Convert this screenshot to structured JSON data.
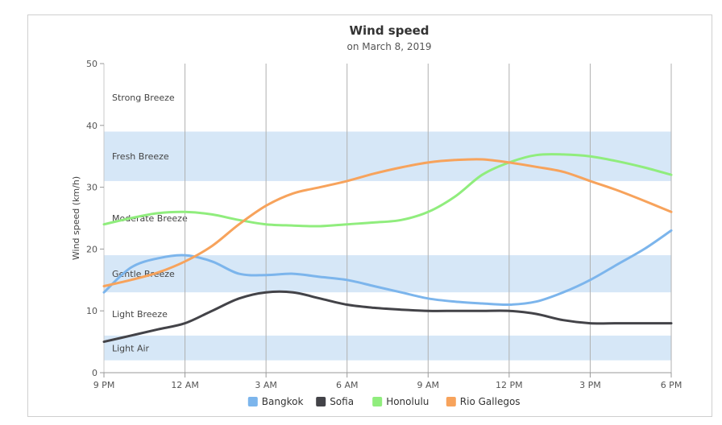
{
  "chart_data": {
    "type": "line",
    "title": "Wind speed",
    "subtitle": "on March 8, 2019",
    "ylabel": "Wind speed (km/h)",
    "xlabel": "",
    "ylim": [
      0,
      50
    ],
    "yticks": [
      0,
      10,
      20,
      30,
      40,
      50
    ],
    "x_hours": [
      0,
      3,
      6,
      9,
      12,
      15,
      18,
      21,
      24,
      27,
      30,
      33,
      36,
      39,
      42,
      45,
      48,
      51,
      54,
      57,
      60,
      63
    ],
    "xticks": [
      {
        "x": 0,
        "label": "9 PM"
      },
      {
        "x": 9,
        "label": "12 AM"
      },
      {
        "x": 18,
        "label": "3 AM"
      },
      {
        "x": 27,
        "label": "6 AM"
      },
      {
        "x": 36,
        "label": "9 AM"
      },
      {
        "x": 45,
        "label": "12 PM"
      },
      {
        "x": 54,
        "label": "3 PM"
      },
      {
        "x": 63,
        "label": "6 PM"
      }
    ],
    "bands": [
      {
        "from": 2,
        "to": 6,
        "label": "Light Air",
        "shaded": true
      },
      {
        "from": 6,
        "to": 13,
        "label": "Light Breeze",
        "shaded": false
      },
      {
        "from": 13,
        "to": 19,
        "label": "Gentle Breeze",
        "shaded": true
      },
      {
        "from": 19,
        "to": 31,
        "label": "Moderate Breeze",
        "shaded": false
      },
      {
        "from": 31,
        "to": 39,
        "label": "Fresh Breeze",
        "shaded": true
      },
      {
        "from": 39,
        "to": 50,
        "label": "Strong Breeze",
        "shaded": false
      }
    ],
    "band_color": "#d6e7f7",
    "series": [
      {
        "name": "Bangkok",
        "color": "#7cb5ec",
        "values": [
          13,
          17,
          18.5,
          19,
          18,
          16,
          15.8,
          16,
          15.5,
          15,
          14,
          13,
          12,
          11.5,
          11.2,
          11,
          11.5,
          13,
          15,
          17.5,
          20,
          23
        ]
      },
      {
        "name": "Sofia",
        "color": "#434348",
        "values": [
          5,
          6,
          7,
          8,
          10,
          12,
          13,
          13,
          12,
          11,
          10.5,
          10.2,
          10,
          10,
          10,
          10,
          9.5,
          8.5,
          8,
          8,
          8,
          8
        ]
      },
      {
        "name": "Honolulu",
        "color": "#90ed7d",
        "values": [
          24,
          25,
          25.8,
          26,
          25.6,
          24.7,
          24,
          23.8,
          23.7,
          24,
          24.3,
          24.7,
          26,
          28.5,
          32,
          34,
          35.2,
          35.3,
          35,
          34.2,
          33.2,
          32
        ]
      },
      {
        "name": "Rio Gallegos",
        "color": "#f7a35c",
        "values": [
          14,
          15,
          16.2,
          18,
          20.5,
          24,
          27,
          29,
          30,
          31,
          32.2,
          33.2,
          34,
          34.4,
          34.5,
          34,
          33.3,
          32.5,
          31,
          29.5,
          27.8,
          26
        ]
      }
    ],
    "legend_position": "bottom-center",
    "grid": "vertical"
  }
}
